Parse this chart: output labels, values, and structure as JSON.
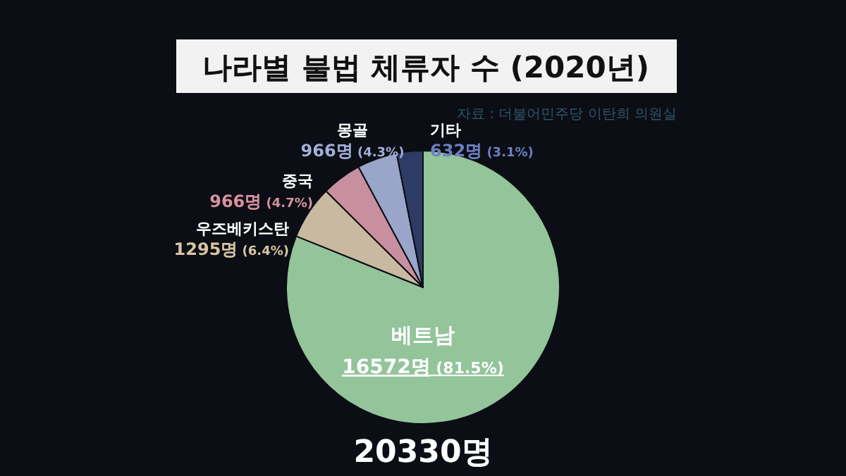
{
  "chart_data": {
    "type": "pie",
    "title": "나라별 불법 체류자 수 (2020년)",
    "annotations": [
      "자료 : 더불어민주당 이탄희 의원실",
      "20330명"
    ],
    "categories": [
      "베트남",
      "우즈베키스탄",
      "중국",
      "몽골",
      "기타"
    ],
    "values": [
      16572,
      1295,
      966,
      966,
      632
    ],
    "value_labels": [
      "16572명 (81.5%)",
      "1295명 (6.4%)",
      "966명 (4.7%)",
      "966명 (4.3%)",
      "632명 (3.1%)"
    ],
    "colors": [
      "#93c49a",
      "#c9b9a0",
      "#c78f9f",
      "#9aa6c9",
      "#2e3b66"
    ]
  }
}
